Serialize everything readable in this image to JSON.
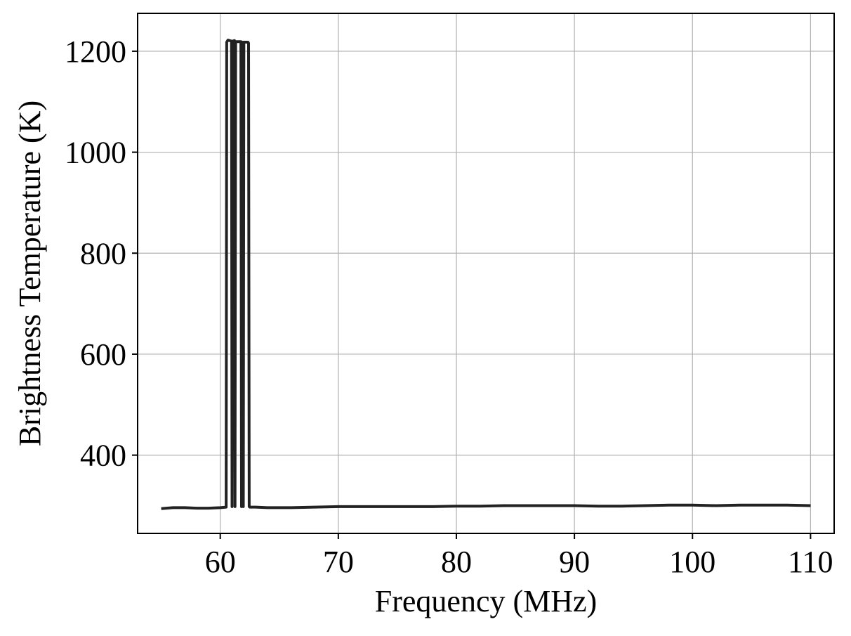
{
  "chart_data": {
    "type": "line",
    "title": "",
    "xlabel": "Frequency (MHz)",
    "ylabel": "Brightness Temperature (K)",
    "xlim": [
      53,
      112
    ],
    "ylim": [
      245,
      1275
    ],
    "xticks": [
      60,
      70,
      80,
      90,
      100,
      110
    ],
    "yticks": [
      400,
      600,
      800,
      1000,
      1200
    ],
    "grid": true,
    "line_color": "#222222",
    "grid_color": "#b0b0b0",
    "series": [
      {
        "x": [
          55.0,
          56.0,
          57.0,
          58.0,
          59.0,
          60.0,
          60.5,
          60.55,
          60.65,
          60.95,
          61.0,
          61.05,
          61.2,
          61.25,
          61.3,
          61.5,
          61.75,
          61.8,
          61.85,
          61.9,
          61.95,
          62.0,
          62.05,
          62.35,
          62.4,
          62.45,
          62.5,
          63.0,
          64.0,
          66.0,
          68.0,
          70.0,
          72.0,
          74.0,
          76.0,
          78.0,
          80.0,
          82.0,
          84.0,
          86.0,
          88.0,
          90.0,
          92.0,
          94.0,
          96.0,
          98.0,
          100.0,
          102.0,
          104.0,
          106.0,
          108.0,
          110.0
        ],
        "y": [
          294,
          296,
          296,
          295,
          295,
          296,
          297,
          1218,
          1222,
          1220,
          298,
          1220,
          1221,
          298,
          1219,
          1219,
          1219,
          298,
          1218,
          1218,
          298,
          1218,
          1218,
          1218,
          1216,
          298,
          297,
          297,
          296,
          296,
          297,
          298,
          298,
          298,
          298,
          298,
          299,
          299,
          300,
          300,
          300,
          300,
          299,
          299,
          300,
          301,
          301,
          300,
          301,
          301,
          301,
          300
        ]
      }
    ]
  }
}
